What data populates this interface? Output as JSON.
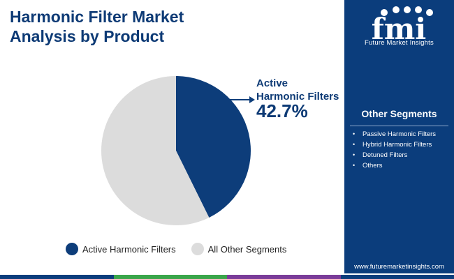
{
  "title_lines": [
    "Harmonic Filter Market",
    "Analysis by Product"
  ],
  "brand": {
    "logo_text": "fmi",
    "name": "Future Market Insights",
    "url": "www.futuremarketinsights.com"
  },
  "sidebar": {
    "heading": "Other Segments",
    "items": [
      "Passive Harmonic Filters",
      "Hybrid Harmonic Filters",
      "Detuned Filters",
      "Others"
    ]
  },
  "chart_data": {
    "type": "pie",
    "slices": [
      {
        "label": "Active Harmonic Filters",
        "value": 42.7,
        "color": "#0d3d7a"
      },
      {
        "label": "All Other Segments",
        "value": 57.3,
        "color": "#dcdcdc"
      }
    ],
    "callout": {
      "label_lines": [
        "Active",
        "Harmonic Filters"
      ],
      "value_text": "42.7%"
    },
    "legend_position": "bottom"
  },
  "colors": {
    "title": "#0d3a75",
    "sidebar_bg": "#0b3d7c",
    "bottom_bar": [
      "#0b3d7c",
      "#3aa64a",
      "#7a3c99",
      "#0b3d7c"
    ]
  }
}
